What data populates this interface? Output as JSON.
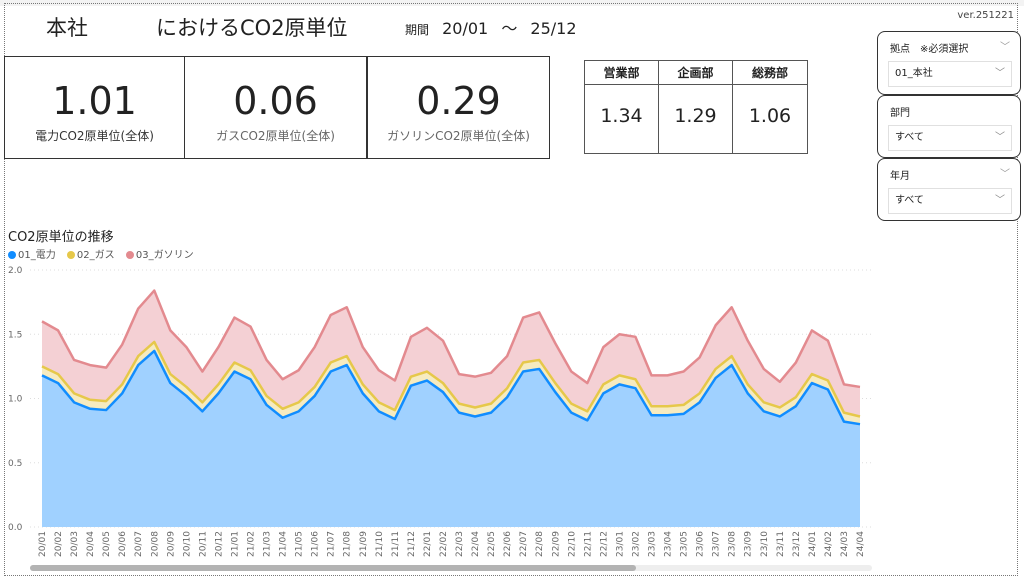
{
  "header": {
    "site": "本社",
    "title": "におけるCO2原単位",
    "period_label": "期間",
    "period_from": "20/01",
    "period_sep": "～",
    "period_to": "25/12",
    "version": "ver.251221"
  },
  "kpis": [
    {
      "value": "1.01",
      "label": "電力CO2原単位(全体)"
    },
    {
      "value": "0.06",
      "label": "ガスCO2原単位(全体)"
    },
    {
      "value": "0.29",
      "label": "ガソリンCO2原単位(全体)"
    }
  ],
  "departments": [
    {
      "name": "営業部",
      "value": "1.34"
    },
    {
      "name": "企画部",
      "value": "1.29"
    },
    {
      "name": "総務部",
      "value": "1.06"
    }
  ],
  "slicers": [
    {
      "title": "拠点　※必須選択",
      "value": "01_本社"
    },
    {
      "title": "部門",
      "value": "すべて"
    },
    {
      "title": "年月",
      "value": "すべて"
    }
  ],
  "chart_data": {
    "type": "area",
    "stacked": true,
    "title": "CO2原単位の推移",
    "legend_position": "top-left",
    "ylim": [
      0,
      2.0
    ],
    "yticks": [
      "0.0",
      "0.5",
      "1.0",
      "1.5",
      "2.0"
    ],
    "grid": true,
    "categories": [
      "20/01",
      "20/02",
      "20/03",
      "20/04",
      "20/05",
      "20/06",
      "20/07",
      "20/08",
      "20/09",
      "20/10",
      "20/11",
      "20/12",
      "21/01",
      "21/02",
      "21/03",
      "21/04",
      "21/05",
      "21/06",
      "21/07",
      "21/08",
      "21/09",
      "21/10",
      "21/11",
      "21/12",
      "22/01",
      "22/02",
      "22/03",
      "22/04",
      "22/05",
      "22/06",
      "22/07",
      "22/08",
      "22/09",
      "22/10",
      "22/11",
      "22/12",
      "23/01",
      "23/02",
      "23/03",
      "23/04",
      "23/05",
      "23/06",
      "23/07",
      "23/08",
      "23/09",
      "23/10",
      "23/11",
      "23/12",
      "24/01",
      "24/02",
      "24/03",
      "24/04"
    ],
    "series": [
      {
        "name": "01_電力",
        "color": "#118DFF",
        "fill": "#A0D1FF",
        "values": [
          1.18,
          1.12,
          0.97,
          0.92,
          0.91,
          1.04,
          1.26,
          1.37,
          1.12,
          1.02,
          0.9,
          1.04,
          1.21,
          1.15,
          0.95,
          0.85,
          0.9,
          1.02,
          1.21,
          1.26,
          1.04,
          0.9,
          0.84,
          1.1,
          1.14,
          1.05,
          0.89,
          0.86,
          0.89,
          1.01,
          1.21,
          1.23,
          1.05,
          0.89,
          0.83,
          1.04,
          1.11,
          1.08,
          0.87,
          0.87,
          0.88,
          0.97,
          1.16,
          1.26,
          1.04,
          0.9,
          0.86,
          0.94,
          1.12,
          1.07,
          0.82,
          0.8
        ]
      },
      {
        "name": "02_ガス",
        "color": "#E6C84A",
        "fill": "#F6EBC0",
        "values": [
          0.07,
          0.07,
          0.07,
          0.07,
          0.07,
          0.07,
          0.07,
          0.07,
          0.07,
          0.07,
          0.07,
          0.07,
          0.07,
          0.07,
          0.07,
          0.07,
          0.07,
          0.07,
          0.07,
          0.07,
          0.07,
          0.07,
          0.07,
          0.07,
          0.07,
          0.07,
          0.07,
          0.07,
          0.07,
          0.07,
          0.07,
          0.07,
          0.07,
          0.07,
          0.07,
          0.07,
          0.07,
          0.07,
          0.07,
          0.07,
          0.07,
          0.07,
          0.07,
          0.07,
          0.07,
          0.07,
          0.07,
          0.07,
          0.07,
          0.07,
          0.07,
          0.06
        ]
      },
      {
        "name": "03_ガソリン",
        "color": "#E38A8F",
        "fill": "#F4D0D4",
        "values": [
          0.35,
          0.34,
          0.26,
          0.27,
          0.26,
          0.31,
          0.37,
          0.4,
          0.34,
          0.31,
          0.24,
          0.29,
          0.35,
          0.34,
          0.28,
          0.23,
          0.25,
          0.31,
          0.37,
          0.38,
          0.29,
          0.25,
          0.23,
          0.31,
          0.34,
          0.33,
          0.23,
          0.24,
          0.24,
          0.25,
          0.35,
          0.37,
          0.31,
          0.25,
          0.22,
          0.29,
          0.32,
          0.33,
          0.24,
          0.24,
          0.26,
          0.28,
          0.34,
          0.38,
          0.34,
          0.26,
          0.2,
          0.27,
          0.34,
          0.31,
          0.22,
          0.23
        ]
      }
    ]
  }
}
